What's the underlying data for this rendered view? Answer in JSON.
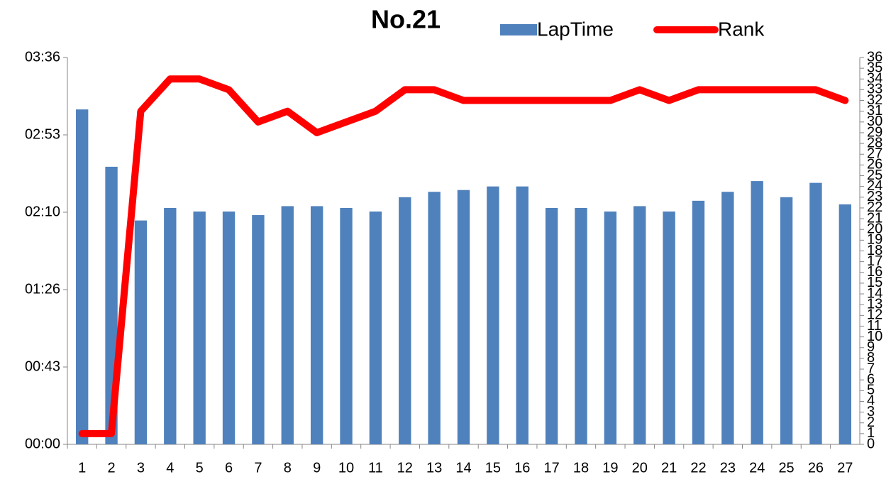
{
  "chart_data": {
    "type": "bar_line",
    "title": "No.21",
    "categories": [
      "1",
      "2",
      "3",
      "4",
      "5",
      "6",
      "7",
      "8",
      "9",
      "10",
      "11",
      "12",
      "13",
      "14",
      "15",
      "16",
      "17",
      "18",
      "19",
      "20",
      "21",
      "22",
      "23",
      "24",
      "25",
      "26",
      "27"
    ],
    "series": [
      {
        "name": "LapTime",
        "type": "bar",
        "color": "#4f81bd",
        "values": [
          187,
          155,
          125,
          132,
          130,
          130,
          128,
          133,
          133,
          132,
          130,
          138,
          141,
          142,
          144,
          144,
          132,
          132,
          130,
          133,
          130,
          136,
          141,
          147,
          138,
          146,
          134
        ]
      },
      {
        "name": "Rank",
        "type": "line",
        "axis": "y2",
        "color": "#ff0000",
        "values": [
          1,
          1,
          31,
          34,
          34,
          33,
          30,
          31,
          29,
          30,
          31,
          33,
          33,
          32,
          32,
          32,
          32,
          32,
          32,
          33,
          32,
          33,
          33,
          33,
          33,
          33,
          32
        ]
      }
    ],
    "ylim": [
      0,
      216
    ],
    "yticks": [
      {
        "value": 0,
        "label": "00:00"
      },
      {
        "value": 43.2,
        "label": "00:43"
      },
      {
        "value": 86.4,
        "label": "01:26"
      },
      {
        "value": 129.6,
        "label": "02:10"
      },
      {
        "value": 172.8,
        "label": "02:53"
      },
      {
        "value": 216,
        "label": "03:36"
      }
    ],
    "y2lim": [
      0,
      36
    ],
    "y2ticks": [
      0,
      1,
      2,
      3,
      4,
      5,
      6,
      7,
      8,
      9,
      10,
      11,
      12,
      13,
      14,
      15,
      16,
      17,
      18,
      19,
      20,
      21,
      22,
      23,
      24,
      25,
      26,
      27,
      28,
      29,
      30,
      31,
      32,
      33,
      34,
      35,
      36
    ],
    "grid": false
  }
}
